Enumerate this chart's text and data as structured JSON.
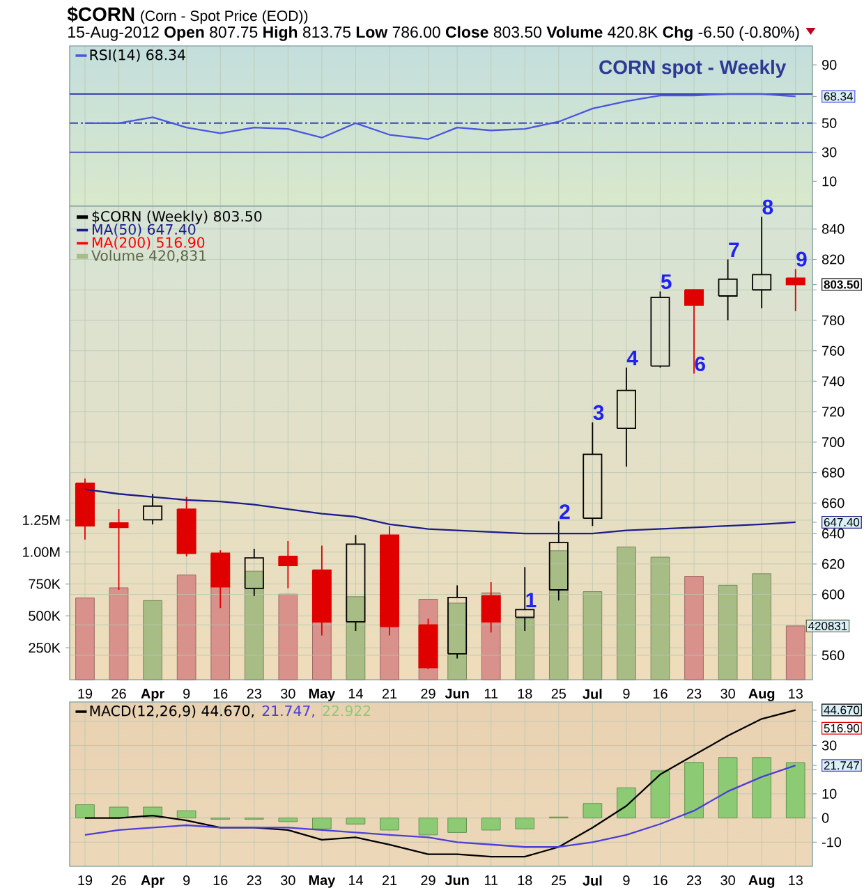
{
  "chart_data": [
    {
      "type": "line",
      "title": "$CORN",
      "subtitle": "(Corn - Spot Price (EOD))",
      "annotations": [
        "15-Aug-2012 **Open** 807.75 **High** 813.75 **Low** 786.00 **Close** 803.50 **Volume** 420.8K **Chg** -6.50 (-0.80%)",
        "CORN spot - Weekly"
      ],
      "x": [
        "2012-03-19",
        "2012-03-26",
        "2012-04-02",
        "2012-04-09",
        "2012-04-16",
        "2012-04-23",
        "2012-04-30",
        "2012-05-07",
        "2012-05-14",
        "2012-05-21",
        "2012-05-29",
        "2012-06-04",
        "2012-06-11",
        "2012-06-18",
        "2012-06-25",
        "2012-07-02",
        "2012-07-09",
        "2012-07-16",
        "2012-07-23",
        "2012-07-30",
        "2012-08-06",
        "2012-08-13"
      ],
      "xlim": [
        "2012-03-15T20:00",
        "2012-08-16T12:00"
      ],
      "xticks": [
        {
          "value": "2012-03-19",
          "label": null
        },
        {
          "value": "2012-03-26",
          "label": null
        },
        {
          "value": "2012-04-02",
          "label": null
        },
        {
          "value": "2012-04-09",
          "label": null
        },
        {
          "value": "2012-04-16",
          "label": null
        },
        {
          "value": "2012-04-23",
          "label": null
        },
        {
          "value": "2012-04-30",
          "label": null
        },
        {
          "value": "2012-05-07",
          "label": null
        },
        {
          "value": "2012-05-14",
          "label": null
        },
        {
          "value": "2012-05-21",
          "label": null
        },
        {
          "value": "2012-05-29",
          "label": null
        },
        {
          "value": "2012-06-04",
          "label": null
        },
        {
          "value": "2012-06-11",
          "label": null
        },
        {
          "value": "2012-06-18",
          "label": null
        },
        {
          "value": "2012-06-25",
          "label": null
        },
        {
          "value": "2012-07-02",
          "label": null
        },
        {
          "value": "2012-07-09",
          "label": null
        },
        {
          "value": "2012-07-16",
          "label": null
        },
        {
          "value": "2012-07-23",
          "label": null
        },
        {
          "value": "2012-07-30",
          "label": null
        },
        {
          "value": "2012-08-06",
          "label": null
        },
        {
          "value": "2012-08-13",
          "label": null
        }
      ],
      "tick_labels": "y",
      "ylim": [
        -7,
        103
      ],
      "yticks": [
        10,
        30,
        50,
        68.34,
        90
      ],
      "grid": "x",
      "legend": "top left",
      "ref_lines": [
        {
          "axis": "y",
          "value": 70,
          "color": "#3a44b4"
        },
        {
          "axis": "y",
          "value": 50,
          "color": "#3a44b4",
          "line_style": "dashed"
        },
        {
          "axis": "y",
          "value": 30,
          "color": "#3a44b4"
        }
      ],
      "series": [
        {
          "name": "RSI(14) 68.34",
          "color": "#4a56e0",
          "values": [
            50,
            50,
            54,
            47,
            43,
            47,
            46,
            40,
            50,
            42,
            39,
            47,
            45,
            46,
            51,
            60,
            65,
            69,
            69,
            70,
            70,
            68.34
          ]
        }
      ]
    },
    {
      "type": "candlestick",
      "annotations": [
        {
          "text": "1",
          "x": "2012-06-18",
          "y": 590
        },
        {
          "text": "2",
          "x": "2012-06-25",
          "y": 648
        },
        {
          "text": "3",
          "x": "2012-07-02",
          "y": 713
        },
        {
          "text": "4",
          "x": "2012-07-09",
          "y": 749
        },
        {
          "text": "5",
          "x": "2012-07-16",
          "y": 799
        },
        {
          "text": "6",
          "x": "2012-07-23",
          "y": 745
        },
        {
          "text": "7",
          "x": "2012-07-30",
          "y": 820
        },
        {
          "text": "8",
          "x": "2012-08-06",
          "y": 848
        },
        {
          "text": "9",
          "x": "2012-08-13",
          "y": 813.75
        }
      ],
      "x": [
        "2012-03-19",
        "2012-03-26",
        "2012-04-02",
        "2012-04-09",
        "2012-04-16",
        "2012-04-23",
        "2012-04-30",
        "2012-05-07",
        "2012-05-14",
        "2012-05-21",
        "2012-05-29",
        "2012-06-04",
        "2012-06-11",
        "2012-06-18",
        "2012-06-25",
        "2012-07-02",
        "2012-07-09",
        "2012-07-16",
        "2012-07-23",
        "2012-07-30",
        "2012-08-06",
        "2012-08-13"
      ],
      "xlim": [
        "2012-03-15T20:00",
        "2012-08-16T12:00"
      ],
      "xticks": [
        {
          "value": "2012-03-19",
          "label": "19"
        },
        {
          "value": "2012-03-26",
          "label": "26"
        },
        {
          "value": "2012-04-02",
          "label": "Apr"
        },
        {
          "value": "2012-04-09",
          "label": "9"
        },
        {
          "value": "2012-04-16",
          "label": "16"
        },
        {
          "value": "2012-04-23",
          "label": "23"
        },
        {
          "value": "2012-04-30",
          "label": "30"
        },
        {
          "value": "2012-05-07",
          "label": "May"
        },
        {
          "value": "2012-05-14",
          "label": "14"
        },
        {
          "value": "2012-05-21",
          "label": "21"
        },
        {
          "value": "2012-05-29",
          "label": "29"
        },
        {
          "value": "2012-06-04",
          "label": "Jun"
        },
        {
          "value": "2012-06-11",
          "label": "11"
        },
        {
          "value": "2012-06-18",
          "label": "18"
        },
        {
          "value": "2012-06-25",
          "label": "25"
        },
        {
          "value": "2012-07-02",
          "label": "Jul"
        },
        {
          "value": "2012-07-09",
          "label": "9"
        },
        {
          "value": "2012-07-16",
          "label": "16"
        },
        {
          "value": "2012-07-23",
          "label": "23"
        },
        {
          "value": "2012-07-30",
          "label": "30"
        },
        {
          "value": "2012-08-06",
          "label": "Aug"
        },
        {
          "value": "2012-08-13",
          "label": "13"
        }
      ],
      "ylim": [
        544,
        855
      ],
      "yticks": [
        560,
        {
          "value": 580,
          "label": null
        },
        600,
        620,
        640,
        {
          "value": 647.4,
          "label": "647.40"
        },
        660,
        680,
        700,
        720,
        740,
        760,
        780,
        {
          "value": 800,
          "label": null
        },
        {
          "value": 803.5,
          "label": "803.50"
        },
        820,
        840
      ],
      "y2lim": [
        0,
        3710000
      ],
      "y2ticks": [
        {
          "value": 250000,
          "label": "250K"
        },
        {
          "value": 500000,
          "label": "500K"
        },
        {
          "value": 750000,
          "label": "750K"
        },
        {
          "value": 1000000,
          "label": "1.00M"
        },
        {
          "value": 1250000,
          "label": "1.25M"
        }
      ],
      "grid": true,
      "legend": "top left",
      "series": [
        {
          "type": "candlestick",
          "name": "$CORN (Weekly) 803.50",
          "color": "#000000",
          "colors": [
            "#e00000",
            "#e00000",
            "#000000",
            "#e00000",
            "#e00000",
            "#000000",
            "#e00000",
            "#e00000",
            "#000000",
            "#e00000",
            "#e00000",
            "#000000",
            "#e00000",
            "#000000",
            "#000000",
            "#000000",
            "#000000",
            "#000000",
            "#e00000",
            "#000000",
            "#000000",
            "#e00000"
          ],
          "ohlc": [
            [
              673,
              676,
              636,
              645
            ],
            [
              647,
              656,
              603,
              644
            ],
            [
              649,
              666,
              646,
              658
            ],
            [
              656,
              664,
              625,
              627
            ],
            [
              627,
              629,
              591,
              605
            ],
            [
              604,
              630,
              599,
              624
            ],
            [
              625,
              635,
              604,
              619
            ],
            [
              616,
              632,
              573,
              582
            ],
            [
              582,
              639,
              576,
              633
            ],
            [
              639,
              645,
              573,
              579
            ],
            [
              580,
              584,
              551,
              552
            ],
            [
              561,
              606,
              558,
              598
            ],
            [
              599,
              608,
              575,
              582
            ],
            [
              585,
              618,
              576,
              590
            ],
            [
              603,
              648,
              596,
              634
            ],
            [
              650,
              713,
              645,
              692
            ],
            [
              709,
              749,
              684,
              734
            ],
            [
              750,
              799,
              749,
              795
            ],
            [
              800,
              800,
              745,
              790
            ],
            [
              796,
              820,
              780,
              807
            ],
            [
              800,
              848,
              788,
              810
            ],
            [
              807.75,
              813.75,
              786.0,
              803.5
            ]
          ]
        },
        {
          "type": "line",
          "name": "MA(50) 647.40",
          "color": "#1c1c8a",
          "values": [
            669,
            666,
            664,
            662,
            661,
            659,
            656,
            653,
            651,
            646,
            643,
            642,
            641,
            640,
            640,
            640,
            642,
            643,
            644,
            645,
            646,
            647.4
          ]
        },
        {
          "type": "line",
          "name": "MA(200) 516.90",
          "color": "#ff0000",
          "values": [
            null,
            null,
            null,
            null,
            null,
            null,
            null,
            null,
            null,
            null,
            null,
            null,
            null,
            null,
            null,
            null,
            null,
            null,
            null,
            null,
            null,
            null
          ]
        },
        {
          "type": "bar",
          "name": "Volume 420,831",
          "axis": "y2",
          "color": "#a8bd85",
          "colors": [
            "#d9918b",
            "#d9918b",
            "#a8bd85",
            "#d9918b",
            "#d9918b",
            "#a8bd85",
            "#d9918b",
            "#d9918b",
            "#a8bd85",
            "#d9918b",
            "#d9918b",
            "#a8bd85",
            "#d9918b",
            "#a8bd85",
            "#a8bd85",
            "#a8bd85",
            "#a8bd85",
            "#a8bd85",
            "#d9918b",
            "#a8bd85",
            "#a8bd85",
            "#d9918b"
          ],
          "values": [
            640000,
            720000,
            620000,
            820000,
            730000,
            850000,
            670000,
            450000,
            650000,
            410000,
            630000,
            600000,
            680000,
            480000,
            1010000,
            690000,
            1040000,
            960000,
            810000,
            740000,
            830000,
            420831
          ],
          "value_labels": [
            null,
            null,
            null,
            null,
            null,
            null,
            null,
            null,
            null,
            null,
            null,
            null,
            null,
            null,
            null,
            null,
            null,
            null,
            null,
            null,
            null,
            "420831"
          ]
        }
      ]
    },
    {
      "type": "line",
      "annotations": [
        "516.90"
      ],
      "x": [
        "2012-03-19",
        "2012-03-26",
        "2012-04-02",
        "2012-04-09",
        "2012-04-16",
        "2012-04-23",
        "2012-04-30",
        "2012-05-07",
        "2012-05-14",
        "2012-05-21",
        "2012-05-29",
        "2012-06-04",
        "2012-06-11",
        "2012-06-18",
        "2012-06-25",
        "2012-07-02",
        "2012-07-09",
        "2012-07-16",
        "2012-07-23",
        "2012-07-30",
        "2012-08-06",
        "2012-08-13"
      ],
      "xlim": [
        "2012-03-15T20:00",
        "2012-08-16T12:00"
      ],
      "xticks": [
        {
          "value": "2012-03-19",
          "label": "19"
        },
        {
          "value": "2012-03-26",
          "label": "26"
        },
        {
          "value": "2012-04-02",
          "label": "Apr"
        },
        {
          "value": "2012-04-09",
          "label": "9"
        },
        {
          "value": "2012-04-16",
          "label": "16"
        },
        {
          "value": "2012-04-23",
          "label": "23"
        },
        {
          "value": "2012-04-30",
          "label": "30"
        },
        {
          "value": "2012-05-07",
          "label": "May"
        },
        {
          "value": "2012-05-14",
          "label": "14"
        },
        {
          "value": "2012-05-21",
          "label": "21"
        },
        {
          "value": "2012-05-29",
          "label": "29"
        },
        {
          "value": "2012-06-04",
          "label": "Jun"
        },
        {
          "value": "2012-06-11",
          "label": "11"
        },
        {
          "value": "2012-06-18",
          "label": "18"
        },
        {
          "value": "2012-06-25",
          "label": "25"
        },
        {
          "value": "2012-07-02",
          "label": "Jul"
        },
        {
          "value": "2012-07-09",
          "label": "9"
        },
        {
          "value": "2012-07-16",
          "label": "16"
        },
        {
          "value": "2012-07-23",
          "label": "23"
        },
        {
          "value": "2012-07-30",
          "label": "30"
        },
        {
          "value": "2012-08-06",
          "label": "Aug"
        },
        {
          "value": "2012-08-13",
          "label": "13"
        }
      ],
      "ylim": [
        -20,
        48
      ],
      "yticks": [
        -10,
        0,
        10,
        {
          "value": 20,
          "label": null
        },
        21.747,
        30,
        {
          "value": 40,
          "label": null
        },
        {
          "value": 44.67,
          "label": "44.670"
        }
      ],
      "grid": true,
      "legend": "top left",
      "series": [
        {
          "type": "line",
          "name": "MACD(12,26,9) 44.670,",
          "color": "#000000",
          "values": [
            0,
            0,
            1,
            -1,
            -4,
            -4,
            -5,
            -9,
            -8,
            -11,
            -15,
            -15,
            -16,
            -16,
            -12,
            -4,
            5,
            18,
            26,
            34,
            41,
            44.67
          ]
        },
        {
          "type": "line",
          "name": "21.747,",
          "color": "#4b3fd8",
          "values": [
            -7,
            -5,
            -4,
            -3,
            -4,
            -4,
            -4,
            -5,
            -6,
            -7,
            -8,
            -10,
            -11,
            -12,
            -12,
            -10,
            -7,
            -2.5,
            3,
            11,
            17,
            21.747
          ]
        },
        {
          "type": "bar",
          "name": "22.922",
          "color": "#8ccb74",
          "values": [
            5.5,
            4.5,
            4.5,
            3,
            -0.5,
            -0.5,
            -1.5,
            -4.5,
            -2.5,
            -5,
            -7,
            -6,
            -5,
            -4.5,
            0.4,
            6,
            12.5,
            19.5,
            23,
            25,
            25,
            22.922
          ]
        }
      ]
    }
  ]
}
